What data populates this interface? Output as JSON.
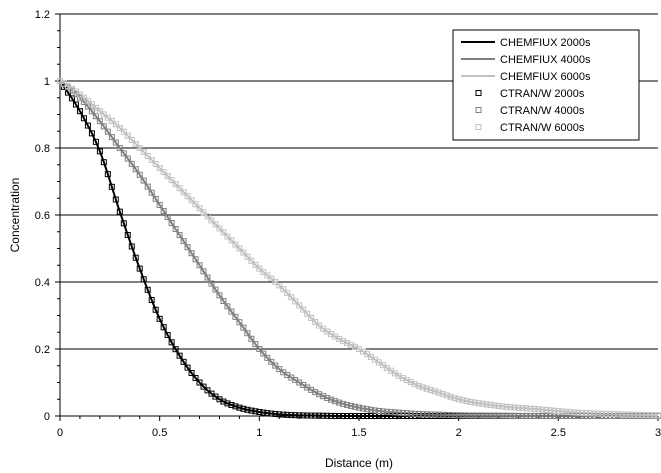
{
  "chart_data": {
    "type": "line",
    "title": "",
    "xlabel": "Distance (m)",
    "ylabel": "Concentration",
    "xlim": [
      0,
      3
    ],
    "ylim": [
      0,
      1.2
    ],
    "x_ticks": [
      0,
      0.5,
      1,
      1.5,
      2,
      2.5,
      3
    ],
    "x_tick_labels": [
      "0",
      "0.5",
      "1",
      "1.5",
      "2",
      "2.5",
      "3"
    ],
    "y_ticks": [
      0,
      0.2,
      0.4,
      0.6,
      0.8,
      1,
      1.2
    ],
    "y_tick_labels": [
      "0",
      "0.2",
      "0.4",
      "0.6",
      "0.8",
      "1",
      "1.2"
    ],
    "grid": "horizontal",
    "legend_position": "top-right",
    "x": [
      0,
      0.1,
      0.2,
      0.3,
      0.4,
      0.5,
      0.6,
      0.7,
      0.8,
      0.9,
      1.0,
      1.1,
      1.2,
      1.3,
      1.4,
      1.5,
      1.6,
      1.7,
      1.8,
      1.9,
      2.0,
      2.2,
      2.4,
      2.6,
      2.8,
      3.0
    ],
    "series": [
      {
        "name": "CHEMFIUX 2000s",
        "style": "line",
        "color": "#000000",
        "values": [
          1.0,
          0.91,
          0.79,
          0.61,
          0.44,
          0.29,
          0.18,
          0.1,
          0.05,
          0.025,
          0.012,
          0.005,
          0.002,
          0.001,
          0,
          0,
          0,
          0,
          0,
          0,
          0,
          0,
          0,
          0,
          0,
          0
        ]
      },
      {
        "name": "CHEMFIUX 4000s",
        "style": "line",
        "color": "#808080",
        "values": [
          1.0,
          0.95,
          0.88,
          0.8,
          0.72,
          0.63,
          0.54,
          0.45,
          0.36,
          0.28,
          0.2,
          0.14,
          0.1,
          0.065,
          0.04,
          0.025,
          0.015,
          0.01,
          0.006,
          0.004,
          0.002,
          0.001,
          0,
          0,
          0,
          0
        ]
      },
      {
        "name": "CHEMFIUX 6000s",
        "style": "line",
        "color": "#c0c0c0",
        "values": [
          1.0,
          0.96,
          0.91,
          0.86,
          0.8,
          0.74,
          0.68,
          0.62,
          0.56,
          0.5,
          0.44,
          0.39,
          0.33,
          0.27,
          0.23,
          0.2,
          0.16,
          0.12,
          0.09,
          0.07,
          0.05,
          0.03,
          0.02,
          0.01,
          0.005,
          0.002
        ]
      },
      {
        "name": "CTRAN/W 2000s",
        "style": "marker",
        "color": "#000000",
        "values": [
          1.0,
          0.91,
          0.79,
          0.61,
          0.44,
          0.29,
          0.18,
          0.1,
          0.05,
          0.025,
          0.012,
          0.005,
          0.002,
          0.001,
          0,
          0,
          0,
          0,
          0,
          0,
          0,
          0,
          0,
          0,
          0,
          0
        ]
      },
      {
        "name": "CTRAN/W 4000s",
        "style": "marker",
        "color": "#808080",
        "values": [
          1.0,
          0.95,
          0.88,
          0.8,
          0.72,
          0.63,
          0.54,
          0.45,
          0.36,
          0.28,
          0.2,
          0.14,
          0.1,
          0.065,
          0.04,
          0.025,
          0.015,
          0.01,
          0.006,
          0.004,
          0.002,
          0.001,
          0,
          0,
          0,
          0
        ]
      },
      {
        "name": "CTRAN/W 6000s",
        "style": "marker",
        "color": "#c0c0c0",
        "values": [
          1.0,
          0.96,
          0.91,
          0.86,
          0.8,
          0.74,
          0.68,
          0.62,
          0.56,
          0.5,
          0.44,
          0.39,
          0.33,
          0.27,
          0.23,
          0.2,
          0.16,
          0.12,
          0.09,
          0.07,
          0.05,
          0.03,
          0.02,
          0.01,
          0.005,
          0.002
        ]
      }
    ]
  }
}
